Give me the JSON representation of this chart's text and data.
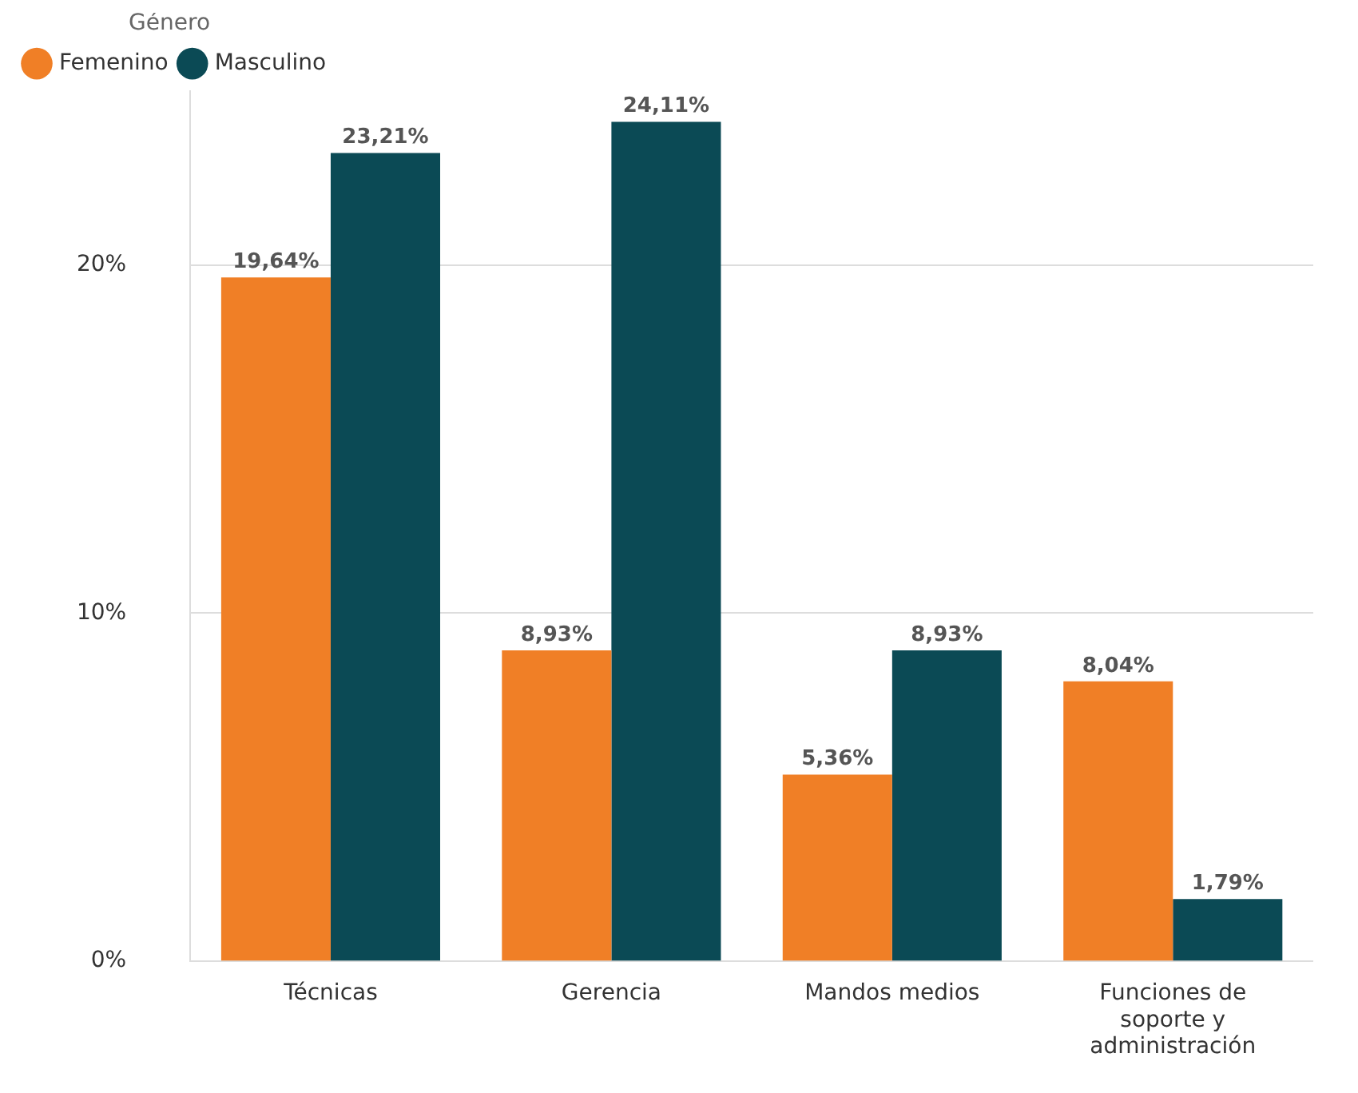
{
  "chart_data": {
    "type": "bar",
    "legend_title": "Género",
    "legend": "top left",
    "categories": [
      "Técnicas",
      "Gerencia",
      "Mandos medios",
      "Funciones de soporte y administración"
    ],
    "series": [
      {
        "name": "Femenino",
        "color": "#f07f26",
        "values": [
          19.64,
          8.93,
          5.36,
          8.04
        ],
        "value_labels": [
          "19,64%",
          "8,93%",
          "5,36%",
          "8,04%"
        ]
      },
      {
        "name": "Masculino",
        "color": "#0b4a55",
        "values": [
          23.21,
          24.11,
          8.93,
          1.79
        ],
        "value_labels": [
          "23,21%",
          "24,11%",
          "8,93%",
          "1,79%"
        ]
      }
    ],
    "ylim": [
      0,
      25
    ],
    "yticks": [
      {
        "value": 0,
        "label": "0%"
      },
      {
        "value": 10,
        "label": "10%"
      },
      {
        "value": 20,
        "label": "20%"
      }
    ],
    "grid": "y",
    "marker": "circle"
  }
}
